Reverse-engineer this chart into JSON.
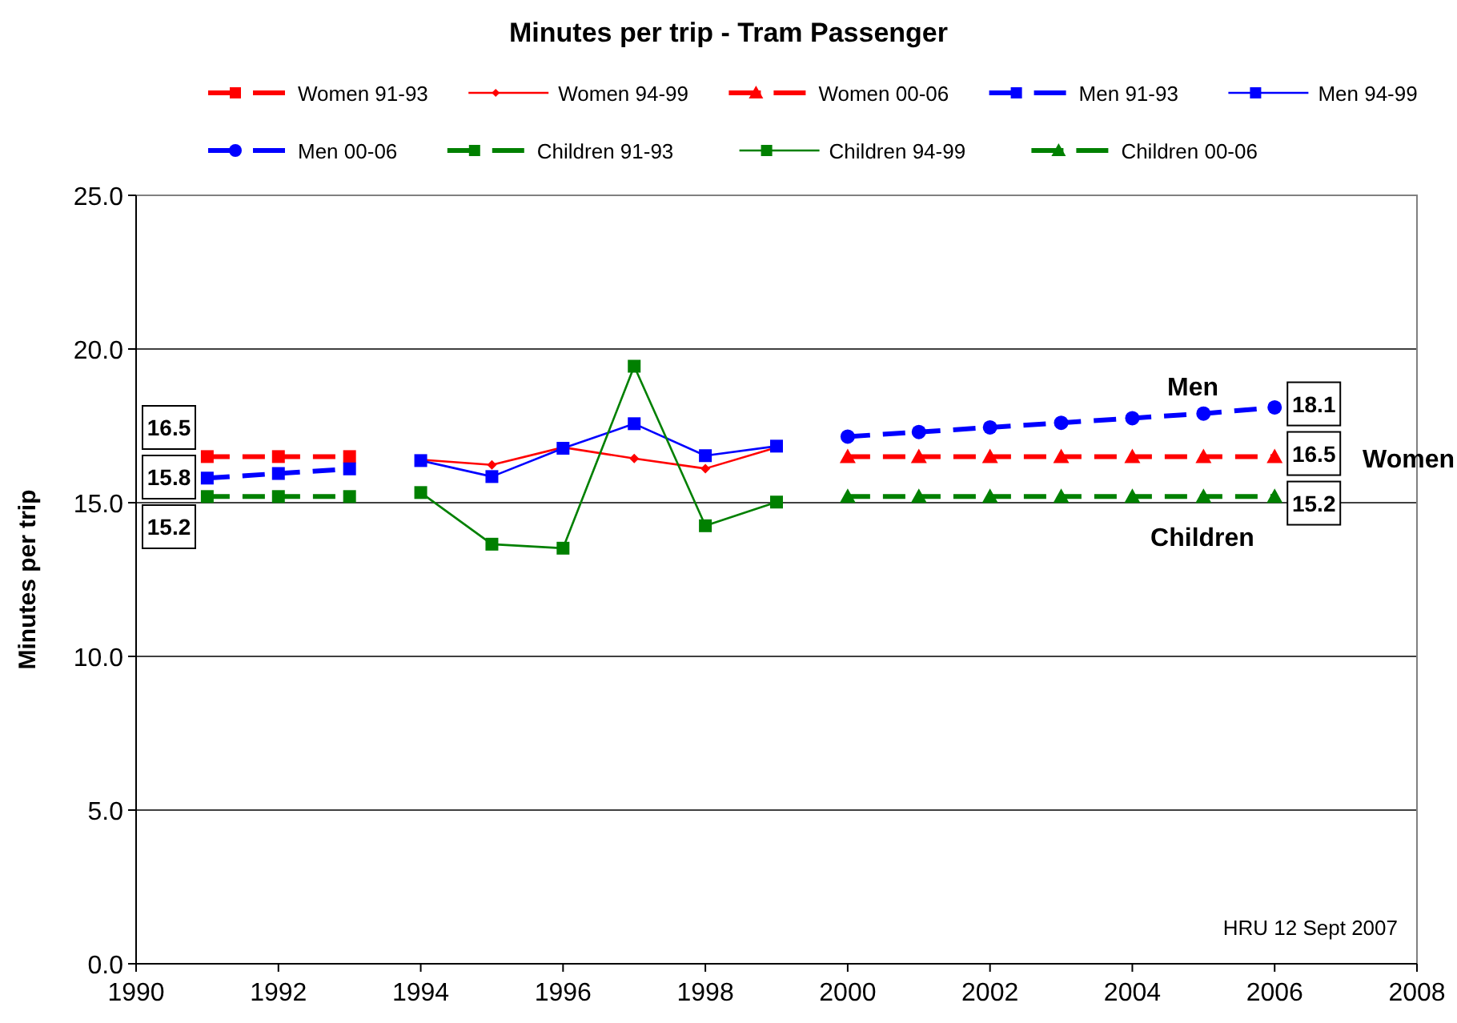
{
  "chart_data": {
    "type": "line",
    "title": "Minutes per trip - Tram Passenger",
    "ylabel": "Minutes per trip",
    "xlim": [
      1990,
      2008
    ],
    "xticks": [
      1990,
      1992,
      1994,
      1996,
      1998,
      2000,
      2002,
      2004,
      2006,
      2008
    ],
    "ylim": [
      0,
      25
    ],
    "yticks": [
      {
        "value": 0,
        "label": "0.0"
      },
      {
        "value": 5,
        "label": "5.0"
      },
      {
        "value": 10,
        "label": "10.0"
      },
      {
        "value": 15,
        "label": "15.0"
      },
      {
        "value": 20,
        "label": "20.0"
      },
      {
        "value": 25,
        "label": "25.0"
      }
    ],
    "grid": "y",
    "legend": "top",
    "series": [
      {
        "name": "Women 91-93",
        "color": "#ff0000",
        "marker": "square",
        "line_style": "dashed",
        "x": [
          1991,
          1992,
          1993
        ],
        "values": [
          16.5,
          16.5,
          16.5
        ],
        "value_labels": [
          "16.5",
          null,
          null
        ]
      },
      {
        "name": "Women 94-99",
        "color": "#ff0000",
        "marker": "diamond",
        "line_style": "solid",
        "x": [
          1994,
          1995,
          1996,
          1997,
          1998,
          1999
        ],
        "values": [
          16.4,
          16.23,
          16.8,
          16.44,
          16.11,
          16.8
        ]
      },
      {
        "name": "Women 00-06",
        "color": "#ff0000",
        "marker": "triangle",
        "line_style": "dashed",
        "x": [
          2000,
          2001,
          2002,
          2003,
          2004,
          2005,
          2006
        ],
        "values": [
          16.5,
          16.5,
          16.5,
          16.5,
          16.5,
          16.5,
          16.5
        ],
        "value_labels": [
          null,
          null,
          null,
          null,
          null,
          null,
          "16.5"
        ]
      },
      {
        "name": "Men 91-93",
        "color": "#0000ff",
        "marker": "square",
        "line_style": "dashed",
        "x": [
          1991,
          1992,
          1993
        ],
        "values": [
          15.8,
          15.95,
          16.1
        ],
        "value_labels": [
          "15.8",
          null,
          null
        ]
      },
      {
        "name": "Men 94-99",
        "color": "#0000ff",
        "marker": "square",
        "line_style": "solid",
        "x": [
          1994,
          1995,
          1996,
          1997,
          1998,
          1999
        ],
        "values": [
          16.37,
          15.85,
          16.77,
          17.57,
          16.53,
          16.84
        ]
      },
      {
        "name": "Men 00-06",
        "color": "#0000ff",
        "marker": "circle",
        "line_style": "dashed",
        "x": [
          2000,
          2001,
          2002,
          2003,
          2004,
          2005,
          2006
        ],
        "values": [
          17.15,
          17.3,
          17.45,
          17.6,
          17.75,
          17.9,
          18.1
        ],
        "value_labels": [
          null,
          null,
          null,
          null,
          null,
          null,
          "18.1"
        ]
      },
      {
        "name": "Children 91-93",
        "color": "#008000",
        "marker": "square",
        "line_style": "dashed",
        "x": [
          1991,
          1992,
          1993
        ],
        "values": [
          15.2,
          15.2,
          15.2
        ],
        "value_labels": [
          "15.2",
          null,
          null
        ]
      },
      {
        "name": "Children 94-99",
        "color": "#008000",
        "marker": "square",
        "line_style": "solid",
        "x": [
          1994,
          1995,
          1996,
          1997,
          1998,
          1999
        ],
        "values": [
          15.33,
          13.65,
          13.52,
          19.44,
          14.25,
          15.02
        ]
      },
      {
        "name": "Children 00-06",
        "color": "#008000",
        "marker": "triangle",
        "line_style": "dashed",
        "x": [
          2000,
          2001,
          2002,
          2003,
          2004,
          2005,
          2006
        ],
        "values": [
          15.2,
          15.2,
          15.2,
          15.2,
          15.2,
          15.2,
          15.2
        ],
        "value_labels": [
          null,
          null,
          null,
          null,
          null,
          null,
          "15.2"
        ]
      }
    ],
    "annotations": [
      "Men",
      "Women",
      "Children",
      "HRU 12 Sept  2007"
    ]
  }
}
